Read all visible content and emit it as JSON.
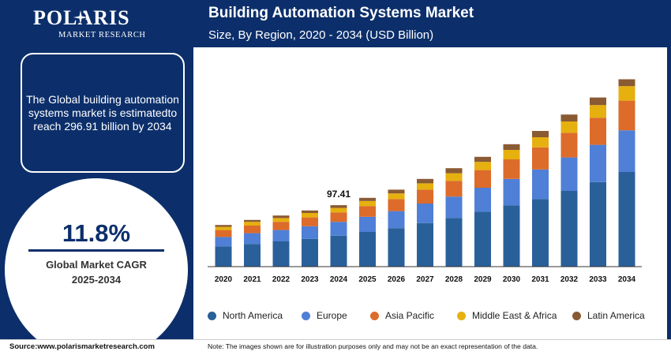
{
  "brand": {
    "name": "POLARIS",
    "tagline": "MARKET RESEARCH"
  },
  "info": {
    "text": "The Global building automation systems market is estimatedto reach 296.91 billion by 2034"
  },
  "cagr": {
    "value": "11.8%",
    "label_line1": "Global Market CAGR",
    "label_line2": "2025-2034"
  },
  "footer": {
    "source": "Source:www.polarismarketresearch.com",
    "note": "Note: The images shown are for illustration purposes only and may not be an exact representation of the data."
  },
  "colors": {
    "background": "#0c2f6b",
    "north_america": "#2a6099",
    "europe": "#4f7fd6",
    "asia_pacific": "#dd6b2a",
    "middle_east_africa": "#e6b00f",
    "latin_america": "#8a5a33"
  },
  "chart_data": {
    "type": "bar",
    "stacked": true,
    "title": "Building Automation Systems Market",
    "subtitle": "Size, By Region, 2020 - 2034 (USD Billion)",
    "xlabel": "",
    "ylabel": "",
    "ylim": [
      0,
      310
    ],
    "grid": false,
    "legend_position": "bottom",
    "categories": [
      "2020",
      "2021",
      "2022",
      "2023",
      "2024",
      "2025",
      "2026",
      "2027",
      "2028",
      "2029",
      "2030",
      "2031",
      "2032",
      "2033",
      "2034"
    ],
    "series": [
      {
        "name": "North America",
        "color": "#2a6099",
        "values": [
          32,
          36,
          40,
          44,
          49,
          55,
          61,
          69,
          77,
          87,
          97,
          107,
          120,
          134,
          150
        ]
      },
      {
        "name": "Europe",
        "color": "#4f7fd6",
        "values": [
          15,
          17,
          18,
          20,
          22,
          24,
          27,
          31,
          34,
          38,
          42,
          47,
          53,
          59,
          66
        ]
      },
      {
        "name": "Asia Pacific",
        "color": "#dd6b2a",
        "values": [
          11,
          12,
          13,
          14,
          15,
          17,
          19,
          22,
          25,
          28,
          31,
          35,
          39,
          43,
          47
        ]
      },
      {
        "name": "Middle East & Africa",
        "color": "#e6b00f",
        "values": [
          5,
          6,
          6,
          7,
          7,
          8,
          9,
          10,
          12,
          13,
          15,
          16,
          18,
          20,
          23
        ]
      },
      {
        "name": "Latin America",
        "color": "#8a5a33",
        "values": [
          3,
          3,
          4,
          4,
          4.41,
          5,
          6,
          7,
          8,
          8,
          9,
          10,
          11,
          12,
          10.91
        ]
      }
    ],
    "annotations": [
      {
        "category": "2024",
        "text": "97.41"
      }
    ]
  }
}
